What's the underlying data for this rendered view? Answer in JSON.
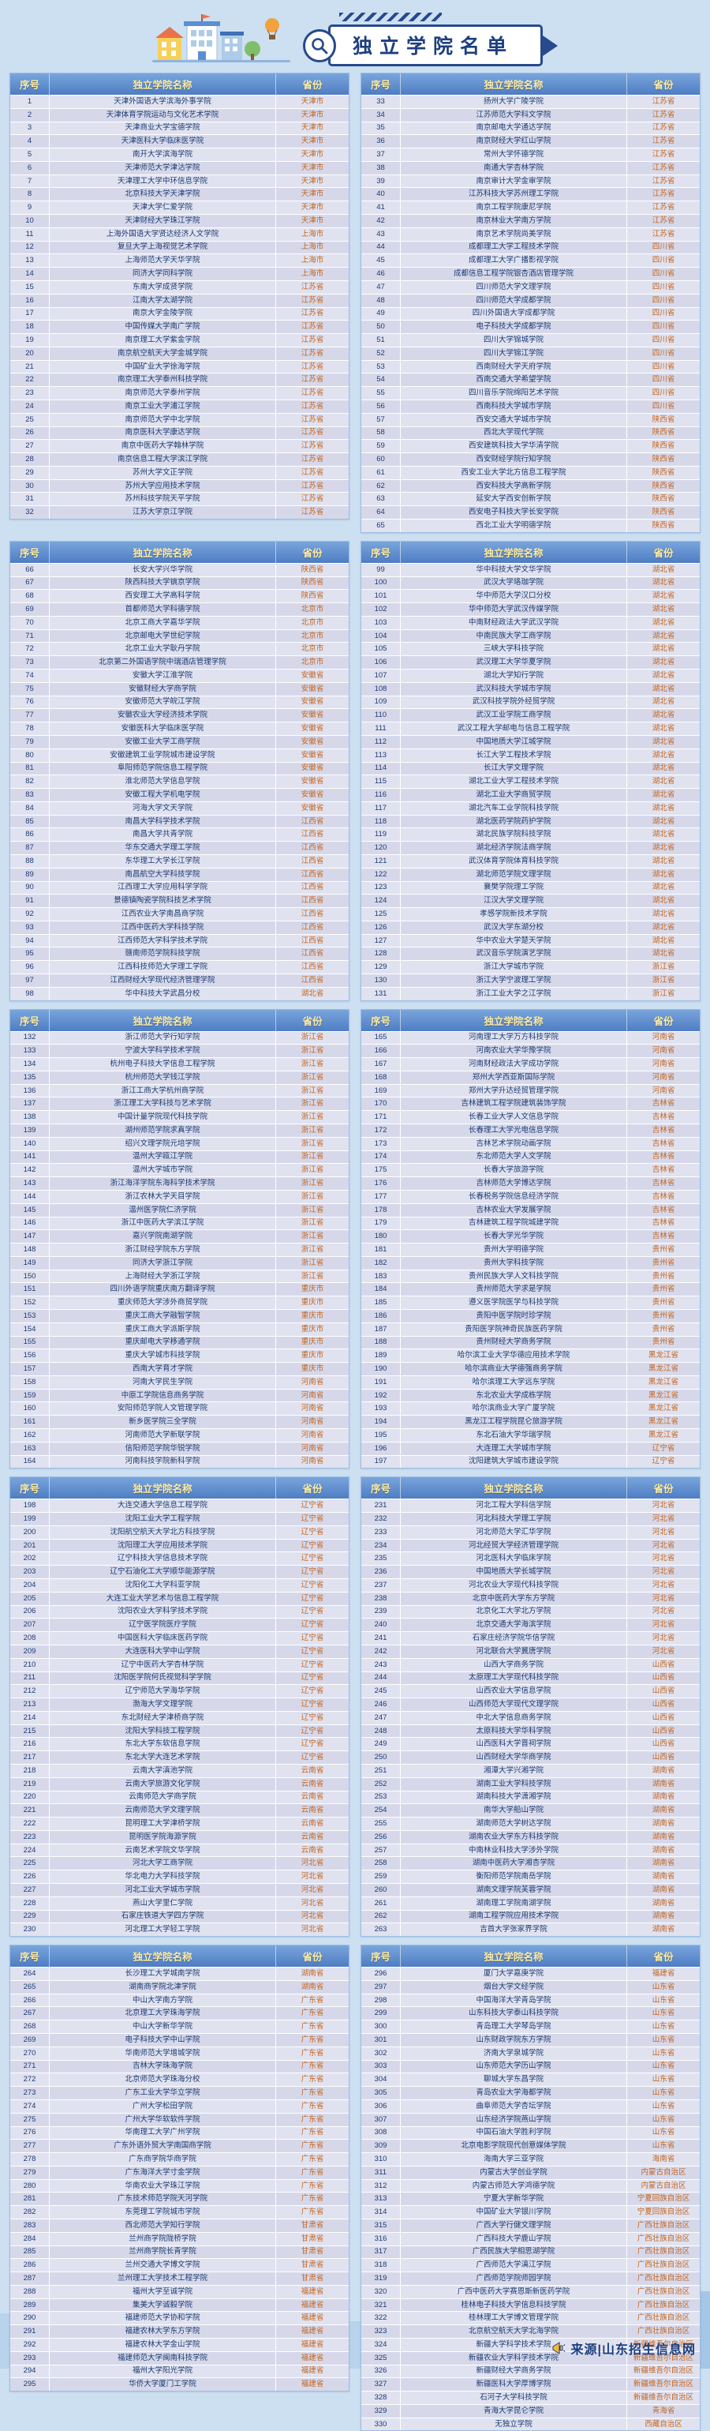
{
  "header": {
    "title": "独立学院名单"
  },
  "footer": {
    "source": "来源|山东招生信息网"
  },
  "table_headers": {
    "index": "序号",
    "name": "独立学院名称",
    "province": "省份"
  },
  "colors": {
    "page_background": "#cde0f1",
    "banner_navy": "#274a8c",
    "table_header_blue": "#4e7dc3",
    "table_header_text": "#ffec9f",
    "row_lavender": "#d6d8ea",
    "college_text": "#1c3a70",
    "province_text": "#c2641f",
    "accent_yellow": "#f5c64f"
  },
  "list": {
    "chunk_sizes": [
      32,
      33,
      33,
      33,
      33,
      33,
      33,
      33,
      32,
      35
    ],
    "groups": [
      {
        "province": "天津市",
        "colleges": [
          "天津外国语大学滨海外事学院",
          "天津体育学院运动与文化艺术学院",
          "天津商业大学宝德学院",
          "天津医科大学临床医学院",
          "南开大学滨海学院",
          "天津师范大学津沽学院",
          "天津理工大学中环信息学院",
          "北京科技大学天津学院",
          "天津大学仁爱学院",
          "天津财经大学珠江学院"
        ]
      },
      {
        "province": "上海市",
        "colleges": [
          "上海外国语大学贤达经济人文学院",
          "复旦大学上海视觉艺术学院",
          "上海师范大学天华学院",
          "同济大学同科学院"
        ]
      },
      {
        "province": "江苏省",
        "colleges": [
          "东南大学成贤学院",
          "江南大学太湖学院",
          "南京大学金陵学院",
          "中国传媒大学南广学院",
          "南京理工大学紫金学院",
          "南京航空航天大学金城学院",
          "中国矿业大学徐海学院",
          "南京理工大学泰州科技学院",
          "南京师范大学泰州学院",
          "南京工业大学浦江学院",
          "南京师范大学中北学院",
          "南京医科大学康达学院",
          "南京中医药大学翰林学院",
          "南京信息工程大学滨江学院",
          "苏州大学文正学院",
          "苏州大学应用技术学院",
          "苏州科技学院天平学院",
          "江苏大学京江学院",
          "扬州大学广陵学院",
          "江苏师范大学科文学院",
          "南京邮电大学通达学院",
          "南京财经大学红山学院",
          "常州大学怀德学院",
          "南通大学杏林学院",
          "南京审计大学金审学院",
          "江苏科技大学苏州理工学院",
          "南京工程学院康尼学院",
          "南京林业大学南方学院",
          "南京艺术学院尚美学院"
        ]
      },
      {
        "province": "四川省",
        "colleges": [
          "成都理工大学工程技术学院",
          "成都理工大学广播影视学院",
          "成都信息工程学院银杏酒店管理学院",
          "四川师范大学文理学院",
          "四川师范大学成都学院",
          "四川外国语大学成都学院",
          "电子科技大学成都学院",
          "四川大学锦城学院",
          "四川大学锦江学院",
          "西南财经大学天府学院",
          "西南交通大学希望学院",
          "四川音乐学院绵阳艺术学院",
          "西南科技大学城市学院"
        ]
      },
      {
        "province": "陕西省",
        "colleges": [
          "西安交通大学城市学院",
          "西北大学现代学院",
          "西安建筑科技大学华清学院",
          "西安财经学院行知学院",
          "西安工业大学北方信息工程学院",
          "西安科技大学高新学院",
          "延安大学西安创新学院",
          "西安电子科技大学长安学院",
          "西北工业大学明德学院",
          "长安大学兴华学院",
          "陕西科技大学镐京学院",
          "西安理工大学高科学院"
        ]
      },
      {
        "province": "北京市",
        "colleges": [
          "首都师范大学科德学院",
          "北京工商大学嘉华学院",
          "北京邮电大学世纪学院",
          "北京工业大学耿丹学院",
          "北京第二外国语学院中瑞酒店管理学院"
        ]
      },
      {
        "province": "安徽省",
        "colleges": [
          "安徽大学江淮学院",
          "安徽财经大学商学院",
          "安徽师范大学皖江学院",
          "安徽农业大学经济技术学院",
          "安徽医科大学临床医学院",
          "安徽工业大学工商学院",
          "安徽建筑工业学院城市建设学院",
          "阜阳师范学院信息工程学院",
          "淮北师范大学信息学院",
          "安徽工程大学机电学院",
          "河海大学文天学院"
        ]
      },
      {
        "province": "江西省",
        "colleges": [
          "南昌大学科学技术学院",
          "南昌大学共青学院",
          "华东交通大学理工学院",
          "东华理工大学长江学院",
          "南昌航空大学科技学院",
          "江西理工大学应用科学学院",
          "景德镇陶瓷学院科技艺术学院",
          "江西农业大学南昌商学院",
          "江西中医药大学科技学院",
          "江西师范大学科学技术学院",
          "赣南师范学院科技学院",
          "江西科技师范大学理工学院",
          "江西财经大学现代经济管理学院"
        ]
      },
      {
        "province": "湖北省",
        "colleges": [
          "华中科技大学武昌分校",
          "华中科技大学文华学院",
          "武汉大学珞珈学院",
          "华中师范大学汉口分校",
          "华中师范大学武汉传媒学院",
          "中南财经政法大学武汉学院",
          "中南民族大学工商学院",
          "三峡大学科技学院",
          "武汉理工大学华夏学院",
          "湖北大学知行学院",
          "武汉科技大学城市学院",
          "武汉科技学院外经贸学院",
          "武汉工业学院工商学院",
          "武汉工程大学邮电与信息工程学院",
          "中国地质大学江城学院",
          "长江大学工程技术学院",
          "长江大学文理学院",
          "湖北工业大学工程技术学院",
          "湖北工业大学商贸学院",
          "湖北汽车工业学院科技学院",
          "湖北医药学院药护学院",
          "湖北民族学院科技学院",
          "湖北经济学院法商学院",
          "武汉体育学院体育科技学院",
          "湖北师范学院文理学院",
          "襄樊学院理工学院",
          "江汉大学文理学院",
          "孝感学院新技术学院",
          "武汉大学东湖分校",
          "华中农业大学楚天学院",
          "武汉音乐学院演艺学院"
        ]
      },
      {
        "province": "浙江省",
        "colleges": [
          "浙江大学城市学院",
          "浙江大学宁波理工学院",
          "浙江工业大学之江学院",
          "浙江师范大学行知学院",
          "宁波大学科学技术学院",
          "杭州电子科技大学信息工程学院",
          "杭州师范大学钱江学院",
          "浙江工商大学杭州商学院",
          "浙江理工大学科技与艺术学院",
          "中国计量学院现代科技学院",
          "湖州师范学院求真学院",
          "绍兴文理学院元培学院",
          "温州大学瓯江学院",
          "温州大学城市学院",
          "浙江海洋学院东海科学技术学院",
          "浙江农林大学天目学院",
          "温州医学院仁济学院",
          "浙江中医药大学滨江学院",
          "嘉兴学院南湖学院",
          "浙江财经学院东方学院",
          "同济大学浙江学院",
          "上海财经大学浙江学院"
        ]
      },
      {
        "province": "重庆市",
        "colleges": [
          "四川外语学院重庆南方翻译学院",
          "重庆师范大学涉外商贸学院",
          "重庆工商大学融智学院",
          "重庆工商大学派斯学院",
          "重庆邮电大学移通学院",
          "重庆大学城市科技学院",
          "西南大学育才学院"
        ]
      },
      {
        "province": "河南省",
        "colleges": [
          "河南大学民生学院",
          "中原工学院信息商务学院",
          "安阳师范学院人文管理学院",
          "新乡医学院三全学院",
          "河南师范大学新联学院",
          "信阳师范学院华锐学院",
          "河南科技学院新科学院",
          "河南理工大学万方科技学院",
          "河南农业大学华豫学院",
          "河南财经政法大学成功学院",
          "郑州大学西亚斯国际学院",
          "郑州大学升达经贸管理学院"
        ]
      },
      {
        "province": "吉林省",
        "colleges": [
          "吉林建筑工程学院建筑装饰学院",
          "长春工业大学人文信息学院",
          "长春理工大学光电信息学院",
          "吉林艺术学院动画学院",
          "东北师范大学人文学院",
          "长春大学旅游学院",
          "吉林师范大学博达学院",
          "长春税务学院信息经济学院",
          "吉林农业大学发展学院",
          "吉林建筑工程学院城建学院",
          "长春大学光华学院"
        ]
      },
      {
        "province": "贵州省",
        "colleges": [
          "贵州大学明德学院",
          "贵州大学科技学院",
          "贵州民族大学人文科技学院",
          "贵州师范大学求是学院",
          "遵义医学院医学与科技学院",
          "贵阳中医学院时珍学院",
          "贵阳医学院神奇民族医药学院",
          "贵州财经大学商务学院"
        ]
      },
      {
        "province": "黑龙江省",
        "colleges": [
          "哈尔滨工业大学华德应用技术学院",
          "哈尔滨商业大学德强商务学院",
          "哈尔滨理工大学远东学院",
          "东北农业大学成栋学院",
          "哈尔滨商业大学广厦学院",
          "黑龙江工程学院昆仑旅游学院",
          "东北石油大学华瑞学院"
        ]
      },
      {
        "province": "辽宁省",
        "colleges": [
          "大连理工大学城市学院",
          "沈阳建筑大学城市建设学院",
          "大连交通大学信息工程学院",
          "沈阳工业大学工程学院",
          "沈阳航空航天大学北方科技学院",
          "沈阳理工大学应用技术学院",
          "辽宁科技大学信息技术学院",
          "辽宁石油化工大学顺华能源学院",
          "沈阳化工大学科亚学院",
          "大连工业大学艺术与信息工程学院",
          "沈阳农业大学科学技术学院",
          "辽宁医学院医疗学院",
          "中国医科大学临床医药学院",
          "大连医科大学中山学院",
          "辽宁中医药大学杏林学院",
          "沈阳医学院何氏视觉科学学院",
          "辽宁师范大学海华学院",
          "渤海大学文理学院",
          "东北财经大学津桥商学院",
          "沈阳大学科技工程学院",
          "东北大学东软信息学院",
          "东北大学大连艺术学院"
        ]
      },
      {
        "province": "云南省",
        "colleges": [
          "云南大学滇池学院",
          "云南大学旅游文化学院",
          "云南师范大学商学院",
          "云南师范大学文理学院",
          "昆明理工大学津桥学院",
          "昆明医学院海源学院",
          "云南艺术学院文华学院"
        ]
      },
      {
        "province": "河北省",
        "colleges": [
          "河北大学工商学院",
          "华北电力大学科技学院",
          "河北工业大学城市学院",
          "燕山大学里仁学院",
          "石家庄铁道大学四方学院",
          "河北理工大学轻工学院",
          "河北工程大学科信学院",
          "河北科技大学理工学院",
          "河北师范大学汇华学院",
          "河北经贸大学经济管理学院",
          "河北医科大学临床学院",
          "中国地质大学长城学院",
          "河北农业大学现代科技学院",
          "北京中医药大学东方学院",
          "北京化工大学北方学院",
          "北京交通大学海滨学院",
          "石家庄经济学院华信学院",
          "河北联合大学冀唐学院"
        ]
      },
      {
        "province": "山西省",
        "colleges": [
          "山西大学商务学院",
          "太原理工大学现代科技学院",
          "山西农业大学信息学院",
          "山西师范大学现代文理学院",
          "中北大学信息商务学院",
          "太原科技大学华科学院",
          "山西医科大学晋祠学院",
          "山西财经大学华商学院"
        ]
      },
      {
        "province": "湖南省",
        "colleges": [
          "湘潭大学兴湘学院",
          "湖南工业大学科技学院",
          "湖南科技大学潇湘学院",
          "南华大学船山学院",
          "湖南师范大学树达学院",
          "湖南农业大学东方科技学院",
          "中南林业科技大学涉外学院",
          "湖南中医药大学湘杏学院",
          "衡阳师范学院南岳学院",
          "湖南文理学院芙蓉学院",
          "湖南理工学院南湖学院",
          "湖南工程学院应用技术学院",
          "吉首大学张家界学院",
          "长沙理工大学城南学院",
          "湖南商学院北津学院"
        ]
      },
      {
        "province": "广东省",
        "colleges": [
          "中山大学南方学院",
          "北京理工大学珠海学院",
          "中山大学新华学院",
          "电子科技大学中山学院",
          "华南师范大学增城学院",
          "吉林大学珠海学院",
          "北京师范大学珠海分校",
          "广东工业大学华立学院",
          "广州大学松田学院",
          "广州大学华软软件学院",
          "华南理工大学广州学院",
          "广东外语外贸大学南国商学院",
          "广东商学院华商学院",
          "广东海洋大学寸金学院",
          "华南农业大学珠江学院",
          "广东技术师范学院天河学院",
          "东莞理工学院城市学院"
        ]
      },
      {
        "province": "甘肃省",
        "colleges": [
          "西北师范大学知行学院",
          "兰州商学院陇桥学院",
          "兰州商学院长青学院",
          "兰州交通大学博文学院",
          "兰州理工大学技术工程学院"
        ]
      },
      {
        "province": "福建省",
        "colleges": [
          "福州大学至诚学院",
          "集美大学诚毅学院",
          "福建师范大学协和学院",
          "福建农林大学东方学院",
          "福建农林大学金山学院",
          "福建师范大学闽南科技学院",
          "福州大学阳光学院",
          "华侨大学厦门工学院",
          "厦门大学嘉庚学院"
        ]
      },
      {
        "province": "山东省",
        "colleges": [
          "烟台大学文经学院",
          "中国海洋大学青岛学院",
          "山东科技大学泰山科技学院",
          "青岛理工大学琴岛学院",
          "山东财政学院东方学院",
          "济南大学泉城学院",
          "山东师范大学历山学院",
          "聊城大学东昌学院",
          "青岛农业大学海都学院",
          "曲阜师范大学杏坛学院",
          "山东经济学院燕山学院",
          "中国石油大学胜利学院",
          "北京电影学院现代创意媒体学院"
        ]
      },
      {
        "province": "海南省",
        "colleges": [
          "海南大学三亚学院"
        ]
      },
      {
        "province": "内蒙古自治区",
        "colleges": [
          "内蒙古大学创业学院",
          "内蒙古师范大学鸿德学院"
        ]
      },
      {
        "province": "宁夏回族自治区",
        "colleges": [
          "宁夏大学新华学院",
          "中国矿业大学银川学院"
        ]
      },
      {
        "province": "广西壮族自治区",
        "colleges": [
          "广西大学行健文理学院",
          "广西科技大学鹿山学院",
          "广西民族大学相思湖学院",
          "广西师范大学漓江学院",
          "广西师范学院师园学院",
          "广西中医药大学赛恩斯新医药学院",
          "桂林电子科技大学信息科技学院",
          "桂林理工大学博文管理学院",
          "北京航空航天大学北海学院"
        ]
      },
      {
        "province": "新疆维吾尔自治区",
        "colleges": [
          "新疆大学科学技术学院",
          "新疆农业大学科学技术学院",
          "新疆财经大学商务学院",
          "新疆医科大学厚博学院",
          "石河子大学科技学院"
        ]
      },
      {
        "province": "青海省",
        "colleges": [
          "青海大学昆仑学院"
        ]
      },
      {
        "province": "西藏自治区",
        "colleges": [
          "无独立学院"
        ]
      }
    ]
  }
}
